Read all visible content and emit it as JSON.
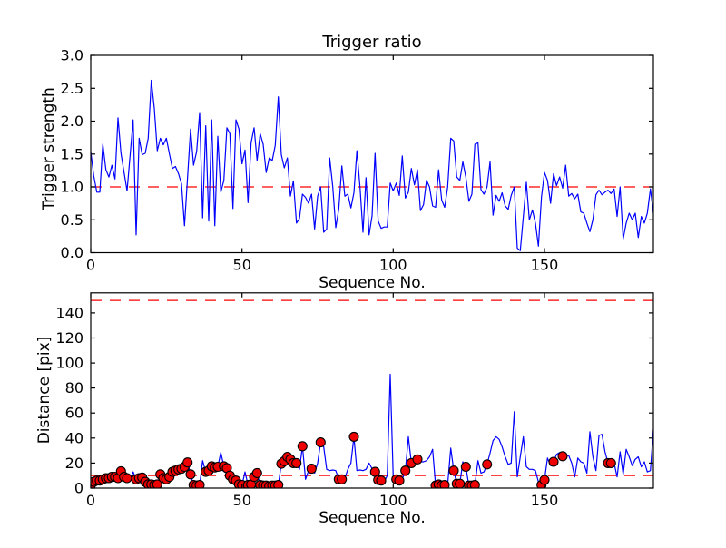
{
  "figure": {
    "background": "#ffffff",
    "title": "Trigger ratio"
  },
  "labels": {
    "top_title": "Trigger ratio",
    "top_xlabel": "Sequence No.",
    "top_ylabel": "Trigger strength",
    "bottom_xlabel": "Sequence No.",
    "bottom_ylabel": "Distance [pix]"
  },
  "colors": {
    "series_line": "#0000ff",
    "threshold_dash": "#ff0000",
    "marker_fill": "#ee0000",
    "marker_edge": "#000000",
    "axes": "#000000"
  },
  "chart_data": [
    {
      "type": "line",
      "name": "trigger-ratio",
      "title": "Trigger ratio",
      "xlabel": "Sequence No.",
      "ylabel": "Trigger strength",
      "xlim": [
        0,
        186
      ],
      "ylim": [
        0,
        3
      ],
      "xticks": [
        0,
        50,
        100,
        150
      ],
      "xtick_labels": [
        "0",
        "50",
        "100",
        "150"
      ],
      "yticks": [
        0,
        0.5,
        1,
        1.5,
        2,
        2.5,
        3
      ],
      "ytick_labels": [
        "0.0",
        "0.5",
        "1.0",
        "1.5",
        "2.0",
        "2.5",
        "3.0"
      ],
      "hlines": [
        1.0
      ],
      "hline_style": "dashed",
      "grid": false,
      "legend": "none",
      "x_step": 1,
      "values": [
        1.54,
        1.17,
        0.92,
        0.92,
        1.65,
        1.26,
        1.15,
        1.33,
        1.12,
        2.05,
        1.51,
        1.22,
        0.94,
        1.47,
        2.02,
        0.27,
        1.74,
        1.49,
        1.51,
        1.74,
        2.62,
        2.2,
        1.55,
        1.74,
        1.64,
        1.74,
        1.5,
        1.28,
        1.31,
        1.2,
        1.05,
        0.41,
        1.15,
        1.88,
        1.33,
        1.54,
        2.13,
        0.53,
        1.93,
        0.48,
        2.02,
        0.41,
        1.77,
        0.92,
        1.1,
        1.9,
        1.81,
        0.67,
        2.02,
        1.88,
        1.35,
        1.56,
        0.76,
        1.67,
        1.9,
        1.4,
        1.81,
        1.65,
        1.22,
        1.44,
        1.4,
        1.63,
        2.37,
        1.49,
        1.29,
        1.44,
        0.86,
        1.09,
        0.45,
        0.52,
        0.89,
        0.84,
        0.75,
        0.89,
        0.36,
        0.86,
        1.0,
        0.31,
        0.36,
        1.44,
        1.0,
        0.38,
        0.66,
        1.32,
        0.86,
        0.89,
        0.68,
        0.91,
        1.55,
        1.0,
        0.31,
        1.14,
        0.27,
        0.56,
        1.51,
        0.48,
        0.37,
        0.39,
        0.39,
        1.06,
        0.94,
        1.06,
        0.87,
        1.47,
        0.83,
        0.92,
        1.28,
        1.03,
        1.26,
        0.64,
        0.73,
        1.1,
        1.0,
        0.71,
        0.69,
        1.26,
        0.8,
        0.69,
        1.0,
        1.74,
        1.7,
        1.15,
        1.1,
        1.38,
        1.15,
        0.78,
        0.89,
        1.65,
        1.67,
        0.96,
        0.89,
        1.0,
        1.38,
        0.57,
        0.87,
        0.78,
        0.91,
        0.71,
        0.66,
        0.87,
        1.0,
        0.07,
        0.03,
        0.55,
        1.07,
        0.5,
        0.65,
        0.45,
        0.1,
        0.85,
        1.22,
        1.1,
        0.75,
        1.2,
        1.02,
        1.15,
        0.98,
        1.33,
        0.86,
        0.9,
        0.82,
        0.89,
        0.62,
        0.6,
        0.45,
        0.32,
        0.5,
        0.88,
        0.95,
        0.88,
        0.92,
        0.95,
        0.9,
        0.97,
        0.55,
        1.0,
        0.21,
        0.45,
        0.6,
        0.5,
        0.6,
        0.23,
        0.55,
        0.45,
        0.6,
        0.97,
        0.6
      ],
      "marker_x": []
    },
    {
      "type": "line",
      "name": "distance",
      "title": "",
      "xlabel": "Sequence No.",
      "ylabel": "Distance [pix]",
      "xlim": [
        0,
        186
      ],
      "ylim": [
        0,
        156
      ],
      "xticks": [
        0,
        50,
        100,
        150
      ],
      "xtick_labels": [
        "0",
        "50",
        "100",
        "150"
      ],
      "yticks": [
        0,
        20,
        40,
        60,
        80,
        100,
        120,
        140
      ],
      "ytick_labels": [
        "0",
        "20",
        "40",
        "60",
        "80",
        "100",
        "120",
        "140"
      ],
      "hlines": [
        150,
        10
      ],
      "hline_style": "dashed",
      "grid": false,
      "legend": "none",
      "x_step": 1,
      "values": [
        2,
        5,
        6,
        6,
        7,
        8,
        8,
        9,
        9,
        8,
        13.5,
        9,
        8,
        7,
        13,
        7,
        8,
        8.5,
        5,
        3,
        3,
        2.5,
        3,
        11,
        8,
        7,
        9,
        13,
        14,
        15,
        15.5,
        17,
        20.5,
        11,
        2.5,
        2,
        2.5,
        22,
        13,
        14,
        17.5,
        16.5,
        17,
        28.5,
        17.5,
        16,
        10,
        7,
        6,
        3,
        2.5,
        13,
        2.5,
        3,
        9,
        12,
        2.5,
        2,
        2,
        1.5,
        2,
        2,
        2.5,
        19.5,
        21.5,
        25,
        23,
        20,
        20,
        15,
        33.5,
        7,
        14,
        15.5,
        12,
        20,
        36.5,
        33,
        15,
        14,
        14.5,
        14,
        7,
        7,
        8,
        15,
        20,
        41,
        14,
        14.5,
        14,
        15,
        20,
        15.5,
        13,
        6.5,
        6,
        5,
        10,
        91,
        9,
        7,
        6,
        7,
        14,
        41,
        20,
        21,
        23,
        21,
        21,
        22,
        25,
        31,
        2,
        3,
        2,
        2.5,
        3,
        32,
        14,
        3.5,
        3.5,
        21,
        17,
        2,
        2,
        2.5,
        22,
        12,
        13,
        19,
        28,
        38,
        41,
        39,
        33,
        25,
        19,
        20,
        61,
        9,
        25,
        41,
        17,
        15,
        15,
        14,
        5,
        2.5,
        6.5,
        24,
        18,
        21,
        27,
        28.5,
        25.5,
        26,
        26,
        20,
        9,
        24,
        21,
        20,
        12,
        45,
        25,
        14,
        42,
        43,
        29,
        20,
        20,
        20,
        9,
        29,
        11,
        31,
        25,
        18,
        23,
        25,
        17,
        21,
        13,
        14,
        47
      ],
      "marker_x": [
        0,
        1,
        2,
        3,
        4,
        5,
        6,
        7,
        8,
        9,
        10,
        11,
        12,
        15,
        16,
        17,
        18,
        19,
        20,
        21,
        22,
        23,
        24,
        25,
        26,
        27,
        28,
        29,
        30,
        31,
        32,
        33,
        34,
        35,
        36,
        38,
        39,
        40,
        41,
        42,
        44,
        45,
        46,
        47,
        48,
        49,
        50,
        52,
        53,
        54,
        55,
        56,
        57,
        58,
        59,
        60,
        61,
        62,
        63,
        64,
        65,
        66,
        67,
        68,
        70,
        73,
        76,
        82,
        83,
        87,
        94,
        95,
        96,
        101,
        102,
        104,
        106,
        108,
        114,
        115,
        116,
        117,
        120,
        121,
        122,
        124,
        125,
        126,
        127,
        131,
        149,
        150,
        153,
        156,
        171,
        172
      ]
    }
  ]
}
